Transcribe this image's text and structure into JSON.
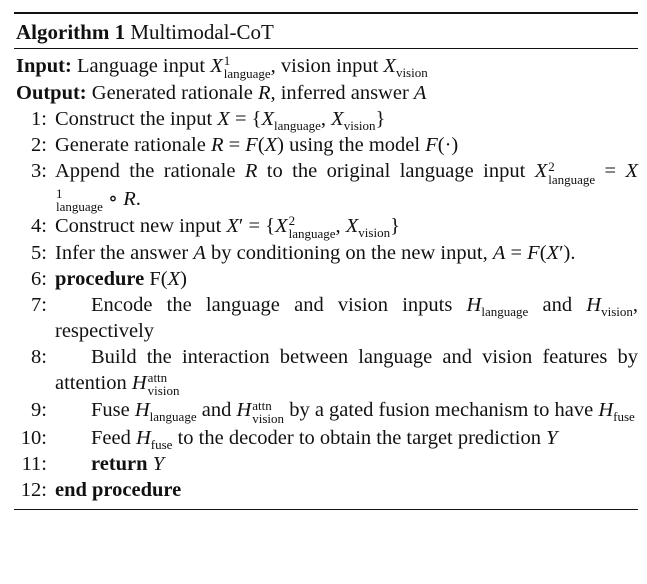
{
  "caption": {
    "label": "Algorithm 1",
    "title": "Multimodal-CoT"
  },
  "input": {
    "label": "Input:",
    "text1": "Language input ",
    "text2": ", vision input "
  },
  "output": {
    "label": "Output:",
    "text1": "Generated rationale ",
    "text2": ", inferred answer "
  },
  "lines": [
    {
      "num": "1:",
      "text": "Construct the input"
    },
    {
      "num": "2:",
      "text": "Generate rationale",
      "text2": "using the model"
    },
    {
      "num": "3:",
      "text": "Append the rationale",
      "text2": "to the original language input"
    },
    {
      "num": "4:",
      "text": "Construct new input"
    },
    {
      "num": "5:",
      "text": "Infer the answer",
      "text2": "by conditioning on the new input,"
    },
    {
      "num": "6:",
      "keyword": "procedure",
      "text": "F("
    },
    {
      "num": "7:",
      "text": "Encode the language and vision inputs",
      "text2": "and",
      "text3": "respectively"
    },
    {
      "num": "8:",
      "text": "Build the interaction between language and vision features by attention"
    },
    {
      "num": "9:",
      "text": "Fuse",
      "text2": "and",
      "text3": "by a gated fusion mechanism to have"
    },
    {
      "num": "10:",
      "text": "Feed",
      "text2": "to the decoder to obtain the target prediction"
    },
    {
      "num": "11:",
      "keyword": "return"
    },
    {
      "num": "12:",
      "keyword": "end procedure"
    }
  ],
  "math": {
    "X": "X",
    "R": "R",
    "A": "A",
    "F": "F",
    "Y": "Y",
    "H": "H",
    "language": "language",
    "vision": "vision",
    "attn": "attn",
    "fuse": "fuse",
    "sup1": "1",
    "sup2": "2",
    "prime": "′"
  }
}
